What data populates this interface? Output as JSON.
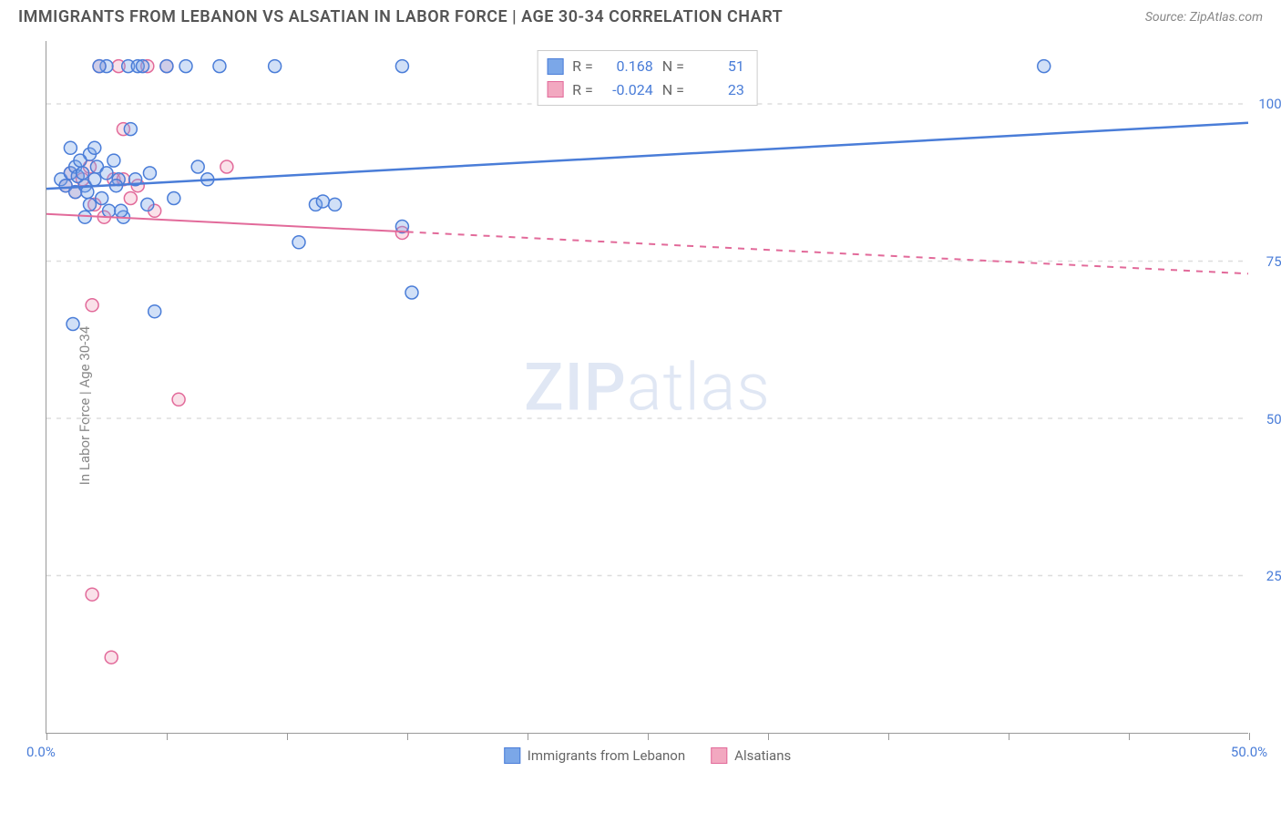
{
  "title": "IMMIGRANTS FROM LEBANON VS ALSATIAN IN LABOR FORCE | AGE 30-34 CORRELATION CHART",
  "source": "Source: ZipAtlas.com",
  "y_axis_label": "In Labor Force | Age 30-34",
  "watermark_a": "ZIP",
  "watermark_b": "atlas",
  "chart": {
    "type": "scatter-with-regression",
    "background_color": "#ffffff",
    "grid_color": "#dddddd",
    "axis_color": "#999999",
    "xlim": [
      0,
      50
    ],
    "ylim": [
      0,
      110
    ],
    "x_ticks": [
      0,
      5,
      10,
      15,
      20,
      25,
      30,
      35,
      40,
      45,
      50
    ],
    "x_tick_labels": {
      "0": "0.0%",
      "50": "50.0%"
    },
    "y_gridlines": [
      25,
      50,
      75,
      100
    ],
    "y_tick_labels": {
      "25": "25.0%",
      "50": "50.0%",
      "75": "75.0%",
      "100": "100.0%"
    },
    "marker_radius": 7,
    "series": [
      {
        "name": "Immigrants from Lebanon",
        "color_fill": "#7ba7e8",
        "color_stroke": "#4a7dd8",
        "R": "0.168",
        "N": "51",
        "regression": {
          "x1": 0,
          "y1": 86.5,
          "x2": 50,
          "y2": 97,
          "solid_until_x": 50,
          "width": 2.5
        },
        "points": [
          [
            0.6,
            88
          ],
          [
            0.8,
            87
          ],
          [
            1.0,
            89
          ],
          [
            1.2,
            90
          ],
          [
            1.2,
            86
          ],
          [
            1.3,
            88.5
          ],
          [
            1.5,
            89
          ],
          [
            1.6,
            87
          ],
          [
            1.8,
            92
          ],
          [
            1.8,
            84
          ],
          [
            2.0,
            88
          ],
          [
            2.1,
            90
          ],
          [
            2.3,
            85
          ],
          [
            2.5,
            106
          ],
          [
            2.6,
            83
          ],
          [
            2.8,
            91
          ],
          [
            3.0,
            88
          ],
          [
            3.2,
            82
          ],
          [
            3.4,
            106
          ],
          [
            3.5,
            96
          ],
          [
            3.8,
            106
          ],
          [
            4.0,
            106
          ],
          [
            4.2,
            84
          ],
          [
            4.5,
            67
          ],
          [
            5.0,
            106
          ],
          [
            5.3,
            85
          ],
          [
            5.8,
            106
          ],
          [
            6.3,
            90
          ],
          [
            6.7,
            88
          ],
          [
            7.2,
            106
          ],
          [
            9.5,
            106
          ],
          [
            10.5,
            78
          ],
          [
            11.2,
            84
          ],
          [
            12.0,
            84
          ],
          [
            14.8,
            80.5
          ],
          [
            14.8,
            106
          ],
          [
            15.2,
            70
          ],
          [
            41.5,
            106
          ],
          [
            1.0,
            93
          ],
          [
            1.4,
            91
          ],
          [
            1.7,
            86
          ],
          [
            2.0,
            93
          ],
          [
            2.2,
            106
          ],
          [
            2.5,
            89
          ],
          [
            2.9,
            87
          ],
          [
            3.1,
            83
          ],
          [
            3.7,
            88
          ],
          [
            4.3,
            89
          ],
          [
            1.1,
            65
          ],
          [
            1.6,
            82
          ],
          [
            11.5,
            84.5
          ]
        ]
      },
      {
        "name": "Alsatians",
        "color_fill": "#f2a8c0",
        "color_stroke": "#e26a9a",
        "R": "-0.024",
        "N": "23",
        "regression": {
          "x1": 0,
          "y1": 82.5,
          "x2": 50,
          "y2": 73,
          "solid_until_x": 15,
          "width": 2
        },
        "points": [
          [
            0.8,
            87
          ],
          [
            1.0,
            89
          ],
          [
            1.2,
            86
          ],
          [
            1.5,
            88
          ],
          [
            1.8,
            90
          ],
          [
            2.0,
            84
          ],
          [
            2.2,
            106
          ],
          [
            2.4,
            82
          ],
          [
            2.8,
            88
          ],
          [
            3.0,
            106
          ],
          [
            3.2,
            96
          ],
          [
            3.8,
            87
          ],
          [
            4.2,
            106
          ],
          [
            4.5,
            83
          ],
          [
            5.0,
            106
          ],
          [
            5.5,
            53
          ],
          [
            7.5,
            90
          ],
          [
            14.8,
            79.5
          ],
          [
            1.9,
            68
          ],
          [
            1.9,
            22
          ],
          [
            2.7,
            12
          ],
          [
            3.5,
            85
          ],
          [
            3.2,
            88
          ]
        ]
      }
    ]
  },
  "r_legend": {
    "r_label": "R =",
    "n_label": "N ="
  },
  "bottom_legend": {
    "label_a": "Immigrants from Lebanon",
    "label_b": "Alsatians"
  }
}
